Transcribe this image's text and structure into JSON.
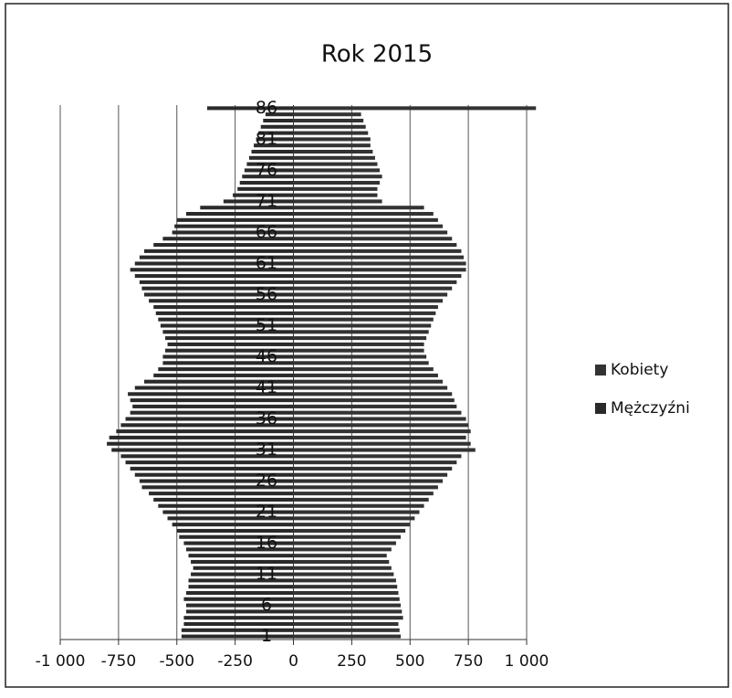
{
  "chart_data": {
    "type": "bar",
    "orientation": "horizontal",
    "stacked": false,
    "title": "Rok 2015",
    "categories": [
      "1",
      null,
      null,
      null,
      null,
      "6",
      null,
      null,
      null,
      null,
      "11",
      null,
      null,
      null,
      null,
      "16",
      null,
      null,
      null,
      null,
      "21",
      null,
      null,
      null,
      null,
      "26",
      null,
      null,
      null,
      null,
      "31",
      null,
      null,
      null,
      null,
      "36",
      null,
      null,
      null,
      null,
      "41",
      null,
      null,
      null,
      null,
      "46",
      null,
      null,
      null,
      null,
      "51",
      null,
      null,
      null,
      null,
      "56",
      null,
      null,
      null,
      null,
      "61",
      null,
      null,
      null,
      null,
      "66",
      null,
      null,
      null,
      null,
      "71",
      null,
      null,
      null,
      null,
      "76",
      null,
      null,
      null,
      null,
      "81",
      null,
      null,
      null,
      null,
      "86"
    ],
    "series": [
      {
        "name": "Kobiety",
        "color": "#333333",
        "values": [
          460,
          455,
          450,
          470,
          465,
          460,
          455,
          450,
          445,
          440,
          430,
          420,
          410,
          400,
          420,
          440,
          460,
          480,
          500,
          520,
          540,
          560,
          580,
          600,
          620,
          640,
          660,
          680,
          700,
          720,
          780,
          760,
          740,
          760,
          750,
          740,
          720,
          700,
          690,
          680,
          660,
          640,
          620,
          600,
          580,
          570,
          560,
          560,
          570,
          580,
          590,
          600,
          610,
          620,
          640,
          660,
          680,
          700,
          720,
          740,
          740,
          730,
          720,
          700,
          680,
          660,
          640,
          620,
          600,
          560,
          380,
          360,
          360,
          370,
          380,
          370,
          360,
          350,
          340,
          330,
          330,
          320,
          310,
          300,
          290,
          1040
        ]
      },
      {
        "name": "Mężczyźni",
        "color": "#2a2a2a",
        "values": [
          -480,
          -480,
          -470,
          -470,
          -460,
          -460,
          -470,
          -460,
          -450,
          -450,
          -440,
          -430,
          -440,
          -450,
          -460,
          -470,
          -490,
          -500,
          -520,
          -540,
          -560,
          -580,
          -600,
          -620,
          -650,
          -660,
          -680,
          -700,
          -720,
          -740,
          -780,
          -800,
          -790,
          -760,
          -740,
          -720,
          -700,
          -690,
          -700,
          -710,
          -680,
          -640,
          -600,
          -580,
          -560,
          -560,
          -550,
          -540,
          -550,
          -560,
          -570,
          -580,
          -590,
          -600,
          -620,
          -640,
          -650,
          -660,
          -680,
          -700,
          -680,
          -660,
          -640,
          -600,
          -560,
          -520,
          -510,
          -500,
          -460,
          -400,
          -300,
          -260,
          -240,
          -230,
          -220,
          -210,
          -200,
          -190,
          -180,
          -170,
          -160,
          -150,
          -140,
          -130,
          -120,
          -370
        ]
      }
    ],
    "xlim": [
      -1000,
      1000
    ],
    "xticks": [
      {
        "value": -1000,
        "label": "-1 000"
      },
      -750,
      -500,
      -250,
      0,
      250,
      500,
      750,
      {
        "value": 1000,
        "label": "1 000"
      }
    ],
    "grid": true,
    "legend": "right"
  }
}
